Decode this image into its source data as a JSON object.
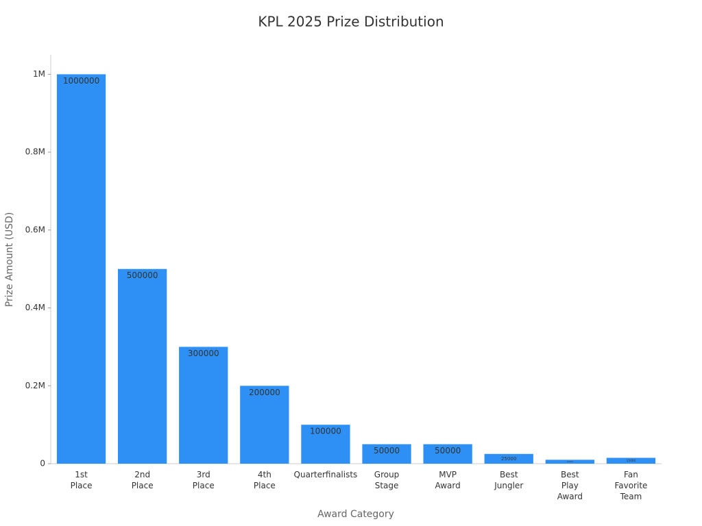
{
  "chart_data": {
    "type": "bar",
    "title": "KPL 2025 Prize Distribution",
    "x_label": "Award Category",
    "y_label": "Prize Amount (USD)",
    "categories": [
      "1st Place",
      "2nd Place",
      "3rd Place",
      "4th Place",
      "Quarterfinalists",
      "Group Stage",
      "MVP Award",
      "Best Jungler",
      "Best Play Award",
      "Fan Favorite Team"
    ],
    "values": [
      1000000,
      500000,
      300000,
      200000,
      100000,
      50000,
      50000,
      25000,
      10000,
      15000
    ],
    "color": "#2e90f5",
    "ylim": [
      0,
      1050000
    ],
    "yticks": [
      0,
      {
        "value": 200000,
        "label": "0.2M"
      },
      {
        "value": 400000,
        "label": "0.4M"
      },
      {
        "value": 600000,
        "label": "0.6M"
      },
      {
        "value": 800000,
        "label": "0.8M"
      },
      {
        "value": 1000000,
        "label": "1M"
      }
    ]
  }
}
